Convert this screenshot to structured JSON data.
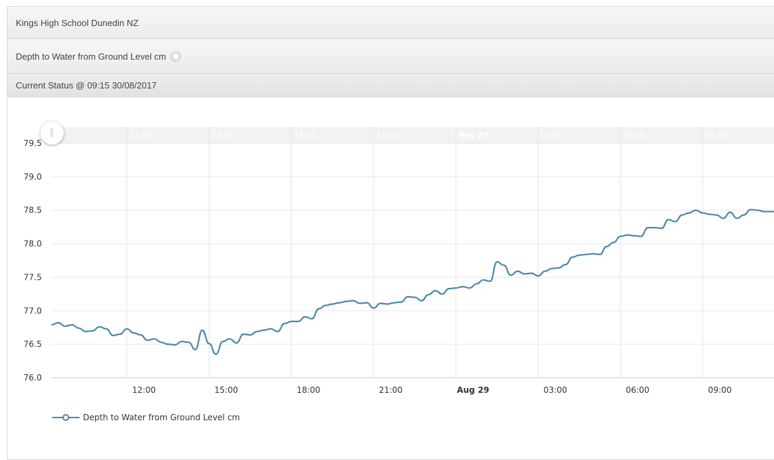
{
  "header": {
    "site_title": "Kings High School Dunedin NZ",
    "measure_title": "Depth to Water from Ground Level cm",
    "status": "Current Status @ 09:15 30/08/2017"
  },
  "colors": {
    "series": "#4a87a8",
    "grid": "#e6e6e6",
    "nav_band": "#f2f2f2"
  },
  "icons": {
    "help": "help-icon",
    "handle": "range-handle"
  },
  "chart_data": {
    "type": "line",
    "title": "",
    "ylabel": "",
    "ylim": [
      76.0,
      79.5
    ],
    "yticks": [
      "76.0",
      "76.5",
      "77.0",
      "77.5",
      "78.0",
      "78.5",
      "79.0",
      "79.5"
    ],
    "xlim_hours": [
      9.25,
      35.6
    ],
    "xticks": [
      {
        "label": "12:00",
        "h": 12,
        "bold": false
      },
      {
        "label": "15:00",
        "h": 15,
        "bold": false
      },
      {
        "label": "18:00",
        "h": 18,
        "bold": false
      },
      {
        "label": "21:00",
        "h": 21,
        "bold": false
      },
      {
        "label": "Aug 29",
        "h": 24,
        "bold": true
      },
      {
        "label": "03:00",
        "h": 27,
        "bold": false
      },
      {
        "label": "06:00",
        "h": 30,
        "bold": false
      },
      {
        "label": "09:00",
        "h": 33,
        "bold": false
      }
    ],
    "navigator_labels": [
      "12:00",
      "15:00",
      "18:00",
      "21:00",
      "Aug 29",
      "03:00",
      "06:00",
      "09:00"
    ],
    "grid": true,
    "legend_position": "bottom-left",
    "series": [
      {
        "name": "Depth to Water from Ground Level cm",
        "x": [
          9.25,
          9.5,
          9.75,
          10.0,
          10.25,
          10.5,
          10.75,
          11.0,
          11.25,
          11.5,
          11.75,
          12.0,
          12.25,
          12.5,
          12.75,
          13.0,
          13.25,
          13.5,
          13.75,
          14.0,
          14.25,
          14.5,
          14.75,
          15.0,
          15.25,
          15.5,
          15.75,
          16.0,
          16.25,
          16.5,
          16.75,
          17.0,
          17.25,
          17.5,
          17.75,
          18.0,
          18.25,
          18.5,
          18.75,
          19.0,
          19.25,
          19.5,
          19.75,
          20.0,
          20.25,
          20.5,
          20.75,
          21.0,
          21.25,
          21.5,
          21.75,
          22.0,
          22.25,
          22.5,
          22.75,
          23.0,
          23.25,
          23.5,
          23.75,
          24.0,
          24.25,
          24.5,
          24.75,
          25.0,
          25.25,
          25.5,
          25.75,
          26.0,
          26.25,
          26.5,
          26.75,
          27.0,
          27.25,
          27.5,
          27.75,
          28.0,
          28.25,
          28.5,
          28.75,
          29.0,
          29.25,
          29.5,
          29.75,
          30.0,
          30.25,
          30.5,
          30.75,
          31.0,
          31.25,
          31.5,
          31.75,
          32.0,
          32.25,
          32.5,
          32.75,
          33.0,
          33.25,
          33.5,
          33.75,
          34.0,
          34.25,
          34.5,
          34.75,
          35.0,
          35.25,
          35.6
        ],
        "y": [
          76.79,
          76.82,
          76.77,
          76.79,
          76.74,
          76.69,
          76.7,
          76.76,
          76.73,
          76.63,
          76.65,
          76.73,
          76.67,
          76.64,
          76.56,
          76.58,
          76.53,
          76.5,
          76.49,
          76.54,
          76.53,
          76.42,
          76.71,
          76.51,
          76.35,
          76.54,
          76.58,
          76.52,
          76.65,
          76.64,
          76.69,
          76.71,
          76.73,
          76.69,
          76.81,
          76.84,
          76.84,
          76.91,
          76.88,
          77.03,
          77.08,
          77.1,
          77.12,
          77.14,
          77.15,
          77.11,
          77.12,
          77.04,
          77.11,
          77.1,
          77.12,
          77.13,
          77.21,
          77.2,
          77.15,
          77.24,
          77.3,
          77.25,
          77.33,
          77.34,
          77.36,
          77.34,
          77.4,
          77.46,
          77.44,
          77.73,
          77.68,
          77.53,
          77.59,
          77.55,
          77.56,
          77.52,
          77.59,
          77.63,
          77.64,
          77.69,
          77.8,
          77.83,
          77.84,
          77.85,
          77.84,
          77.96,
          78.02,
          78.11,
          78.13,
          78.12,
          78.11,
          78.24,
          78.24,
          78.23,
          78.36,
          78.33,
          78.43,
          78.46,
          78.5,
          78.46,
          78.44,
          78.43,
          78.38,
          78.47,
          78.38,
          78.43,
          78.51,
          78.5,
          78.48,
          78.48
        ]
      }
    ]
  }
}
